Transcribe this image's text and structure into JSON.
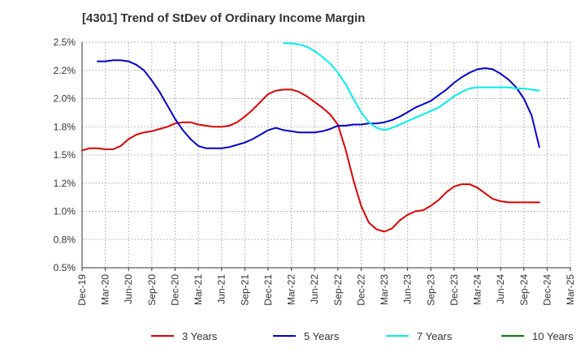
{
  "chart_data": {
    "type": "line",
    "title": "[4301]  Trend of StDev of Ordinary Income Margin",
    "x_tick_labels": [
      "Dec-19",
      "Mar-20",
      "Jun-20",
      "Sep-20",
      "Dec-20",
      "Mar-21",
      "Jun-21",
      "Sep-21",
      "Dec-21",
      "Mar-22",
      "Jun-22",
      "Sep-22",
      "Dec-22",
      "Mar-23",
      "Jun-23",
      "Sep-23",
      "Dec-23",
      "Mar-24",
      "Jun-24",
      "Sep-24",
      "Dec-24",
      "Mar-25"
    ],
    "y_tick_labels": [
      "0.5%",
      "0.8%",
      "1.0%",
      "1.2%",
      "1.5%",
      "1.8%",
      "2.0%",
      "2.2%",
      "2.5%"
    ],
    "ylim": [
      0.5,
      2.5
    ],
    "grid": true,
    "legend_position": "bottom",
    "series": [
      {
        "name": "3 Years",
        "color": "#dd0000",
        "points": [
          [
            "2019-12",
            1.54
          ],
          [
            "2020-01",
            1.56
          ],
          [
            "2020-02",
            1.56
          ],
          [
            "2020-03",
            1.55
          ],
          [
            "2020-04",
            1.55
          ],
          [
            "2020-05",
            1.58
          ],
          [
            "2020-06",
            1.64
          ],
          [
            "2020-07",
            1.68
          ],
          [
            "2020-08",
            1.7
          ],
          [
            "2020-09",
            1.71
          ],
          [
            "2020-10",
            1.73
          ],
          [
            "2020-11",
            1.75
          ],
          [
            "2020-12",
            1.78
          ],
          [
            "2021-01",
            1.79
          ],
          [
            "2021-02",
            1.79
          ],
          [
            "2021-03",
            1.77
          ],
          [
            "2021-04",
            1.76
          ],
          [
            "2021-05",
            1.75
          ],
          [
            "2021-06",
            1.75
          ],
          [
            "2021-07",
            1.76
          ],
          [
            "2021-08",
            1.79
          ],
          [
            "2021-09",
            1.84
          ],
          [
            "2021-10",
            1.9
          ],
          [
            "2021-11",
            1.97
          ],
          [
            "2021-12",
            2.04
          ],
          [
            "2022-01",
            2.07
          ],
          [
            "2022-02",
            2.08
          ],
          [
            "2022-03",
            2.08
          ],
          [
            "2022-04",
            2.06
          ],
          [
            "2022-05",
            2.02
          ],
          [
            "2022-06",
            1.97
          ],
          [
            "2022-07",
            1.92
          ],
          [
            "2022-08",
            1.86
          ],
          [
            "2022-09",
            1.77
          ],
          [
            "2022-10",
            1.55
          ],
          [
            "2022-11",
            1.28
          ],
          [
            "2022-12",
            1.05
          ],
          [
            "2023-01",
            0.9
          ],
          [
            "2023-02",
            0.84
          ],
          [
            "2023-03",
            0.82
          ],
          [
            "2023-04",
            0.85
          ],
          [
            "2023-05",
            0.92
          ],
          [
            "2023-06",
            0.97
          ],
          [
            "2023-07",
            1.0
          ],
          [
            "2023-08",
            1.01
          ],
          [
            "2023-09",
            1.05
          ],
          [
            "2023-10",
            1.1
          ],
          [
            "2023-11",
            1.17
          ],
          [
            "2023-12",
            1.22
          ],
          [
            "2024-01",
            1.24
          ],
          [
            "2024-02",
            1.24
          ],
          [
            "2024-03",
            1.21
          ],
          [
            "2024-04",
            1.16
          ],
          [
            "2024-05",
            1.11
          ],
          [
            "2024-06",
            1.09
          ],
          [
            "2024-07",
            1.08
          ],
          [
            "2024-08",
            1.08
          ],
          [
            "2024-09",
            1.08
          ],
          [
            "2024-10",
            1.08
          ],
          [
            "2024-11",
            1.08
          ]
        ]
      },
      {
        "name": "5 Years",
        "color": "#0000cc",
        "points": [
          [
            "2020-02",
            2.33
          ],
          [
            "2020-03",
            2.33
          ],
          [
            "2020-04",
            2.34
          ],
          [
            "2020-05",
            2.34
          ],
          [
            "2020-06",
            2.33
          ],
          [
            "2020-07",
            2.3
          ],
          [
            "2020-08",
            2.25
          ],
          [
            "2020-09",
            2.16
          ],
          [
            "2020-10",
            2.06
          ],
          [
            "2020-11",
            1.94
          ],
          [
            "2020-12",
            1.82
          ],
          [
            "2021-01",
            1.72
          ],
          [
            "2021-02",
            1.64
          ],
          [
            "2021-03",
            1.58
          ],
          [
            "2021-04",
            1.56
          ],
          [
            "2021-05",
            1.56
          ],
          [
            "2021-06",
            1.56
          ],
          [
            "2021-07",
            1.57
          ],
          [
            "2021-08",
            1.59
          ],
          [
            "2021-09",
            1.61
          ],
          [
            "2021-10",
            1.64
          ],
          [
            "2021-11",
            1.68
          ],
          [
            "2021-12",
            1.72
          ],
          [
            "2022-01",
            1.74
          ],
          [
            "2022-02",
            1.72
          ],
          [
            "2022-03",
            1.71
          ],
          [
            "2022-04",
            1.7
          ],
          [
            "2022-05",
            1.7
          ],
          [
            "2022-06",
            1.7
          ],
          [
            "2022-07",
            1.71
          ],
          [
            "2022-08",
            1.73
          ],
          [
            "2022-09",
            1.76
          ],
          [
            "2022-10",
            1.76
          ],
          [
            "2022-11",
            1.77
          ],
          [
            "2022-12",
            1.77
          ],
          [
            "2023-01",
            1.78
          ],
          [
            "2023-02",
            1.78
          ],
          [
            "2023-03",
            1.79
          ],
          [
            "2023-04",
            1.81
          ],
          [
            "2023-05",
            1.84
          ],
          [
            "2023-06",
            1.88
          ],
          [
            "2023-07",
            1.92
          ],
          [
            "2023-08",
            1.95
          ],
          [
            "2023-09",
            1.98
          ],
          [
            "2023-10",
            2.03
          ],
          [
            "2023-11",
            2.08
          ],
          [
            "2023-12",
            2.14
          ],
          [
            "2024-01",
            2.19
          ],
          [
            "2024-02",
            2.23
          ],
          [
            "2024-03",
            2.26
          ],
          [
            "2024-04",
            2.27
          ],
          [
            "2024-05",
            2.26
          ],
          [
            "2024-06",
            2.22
          ],
          [
            "2024-07",
            2.17
          ],
          [
            "2024-08",
            2.1
          ],
          [
            "2024-09",
            2.0
          ],
          [
            "2024-10",
            1.85
          ],
          [
            "2024-11",
            1.57
          ]
        ]
      },
      {
        "name": "7 Years",
        "color": "#00eeee",
        "points": [
          [
            "2022-02",
            2.49
          ],
          [
            "2022-03",
            2.49
          ],
          [
            "2022-04",
            2.48
          ],
          [
            "2022-05",
            2.46
          ],
          [
            "2022-06",
            2.42
          ],
          [
            "2022-07",
            2.37
          ],
          [
            "2022-08",
            2.31
          ],
          [
            "2022-09",
            2.23
          ],
          [
            "2022-10",
            2.13
          ],
          [
            "2022-11",
            2.0
          ],
          [
            "2022-12",
            1.88
          ],
          [
            "2023-01",
            1.79
          ],
          [
            "2023-02",
            1.74
          ],
          [
            "2023-03",
            1.72
          ],
          [
            "2023-04",
            1.74
          ],
          [
            "2023-05",
            1.77
          ],
          [
            "2023-06",
            1.8
          ],
          [
            "2023-07",
            1.83
          ],
          [
            "2023-08",
            1.86
          ],
          [
            "2023-09",
            1.89
          ],
          [
            "2023-10",
            1.92
          ],
          [
            "2023-11",
            1.97
          ],
          [
            "2023-12",
            2.02
          ],
          [
            "2024-01",
            2.06
          ],
          [
            "2024-02",
            2.09
          ],
          [
            "2024-03",
            2.1
          ],
          [
            "2024-04",
            2.1
          ],
          [
            "2024-05",
            2.1
          ],
          [
            "2024-06",
            2.1
          ],
          [
            "2024-07",
            2.1
          ],
          [
            "2024-08",
            2.09
          ],
          [
            "2024-09",
            2.09
          ],
          [
            "2024-10",
            2.08
          ],
          [
            "2024-11",
            2.07
          ]
        ]
      },
      {
        "name": "10 Years",
        "color": "#008000",
        "points": []
      }
    ]
  }
}
